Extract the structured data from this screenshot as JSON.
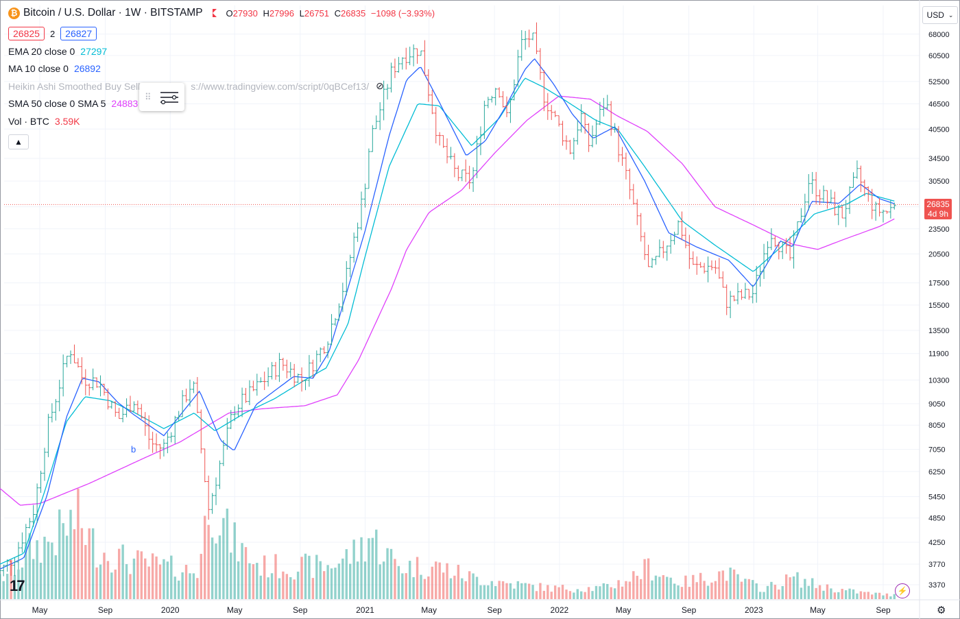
{
  "header": {
    "symbol": "Bitcoin / U.S. Dollar · 1W · BITSTAMP",
    "coin_icon": "bitcoin-icon",
    "open_label": "O",
    "open": "27930",
    "high_label": "H",
    "high": "27996",
    "low_label": "L",
    "low": "26751",
    "close_label": "C",
    "close": "26835",
    "change": "−1098 (−3.93%)",
    "bid": "26825",
    "spread": "2",
    "ask": "26827"
  },
  "indicators": {
    "ema": {
      "label": "EMA 20 close 0",
      "value": "27297"
    },
    "ma": {
      "label": "MA 10 close 0",
      "value": "26892"
    },
    "heikin": {
      "label": "Heikin Ashi Smoothed Buy Sell",
      "url": "s://www.tradingview.com/script/0qBCef13/"
    },
    "sma": {
      "label": "SMA 50 close 0 SMA 5",
      "value": "24883"
    },
    "vol": {
      "label": "Vol · BTC",
      "value": "3.59K"
    }
  },
  "price_axis": {
    "currency": "USD",
    "last_price": "26835",
    "countdown": "4d 9h"
  },
  "signal_label": "b",
  "colors": {
    "up": "#26a69a",
    "down": "#ef5350",
    "ema": "#00bcd4",
    "ma": "#2962ff",
    "sma": "#e040fb"
  },
  "chart_data": {
    "type": "candlestick",
    "timeframe": "1W",
    "yscale": "log",
    "ylim": [
      2850,
      73000
    ],
    "y_ticks": [
      "68000",
      "60500",
      "52500",
      "46500",
      "40500",
      "34500",
      "30500",
      "26500",
      "23500",
      "20500",
      "17500",
      "15500",
      "13500",
      "11900",
      "10300",
      "9050",
      "8050",
      "7050",
      "6250",
      "5450",
      "4850",
      "4250",
      "3770",
      "3370"
    ],
    "x_ticks": [
      "May",
      "Sep",
      "2020",
      "May",
      "Sep",
      "2021",
      "May",
      "Sep",
      "2022",
      "May",
      "Sep",
      "2023",
      "May",
      "Sep"
    ],
    "x_tick_dates": [
      "2019-05-01",
      "2019-09-01",
      "2020-01-01",
      "2020-05-01",
      "2020-09-01",
      "2021-01-01",
      "2021-05-01",
      "2021-09-01",
      "2022-01-01",
      "2022-05-01",
      "2022-09-01",
      "2023-01-01",
      "2023-05-01",
      "2023-09-01"
    ],
    "price_knots": [
      [
        "2019-02-01",
        3450
      ],
      [
        "2019-03-15",
        3950
      ],
      [
        "2019-04-20",
        5100
      ],
      [
        "2019-05-15",
        7900
      ],
      [
        "2019-06-26",
        12300
      ],
      [
        "2019-07-20",
        10400
      ],
      [
        "2019-08-20",
        10200
      ],
      [
        "2019-09-25",
        8300
      ],
      [
        "2019-10-26",
        9300
      ],
      [
        "2019-11-25",
        7300
      ],
      [
        "2019-12-18",
        7100
      ],
      [
        "2020-02-12",
        10300
      ],
      [
        "2020-03-13",
        5100
      ],
      [
        "2020-04-29",
        8800
      ],
      [
        "2020-06-01",
        9600
      ],
      [
        "2020-07-27",
        11300
      ],
      [
        "2020-09-05",
        10300
      ],
      [
        "2020-10-21",
        12800
      ],
      [
        "2020-11-25",
        17800
      ],
      [
        "2020-12-30",
        28900
      ],
      [
        "2021-01-10",
        38000
      ],
      [
        "2021-02-21",
        56000
      ],
      [
        "2021-03-13",
        60500
      ],
      [
        "2021-04-14",
        63000
      ],
      [
        "2021-05-19",
        38000
      ],
      [
        "2021-06-22",
        31500
      ],
      [
        "2021-07-20",
        30500
      ],
      [
        "2021-08-14",
        47000
      ],
      [
        "2021-09-07",
        52000
      ],
      [
        "2021-09-25",
        42500
      ],
      [
        "2021-10-20",
        64500
      ],
      [
        "2021-11-10",
        67500
      ],
      [
        "2021-12-04",
        48000
      ],
      [
        "2022-01-22",
        36000
      ],
      [
        "2022-02-10",
        44000
      ],
      [
        "2022-02-24",
        37000
      ],
      [
        "2022-03-28",
        47500
      ],
      [
        "2022-05-10",
        30000
      ],
      [
        "2022-06-18",
        18500
      ],
      [
        "2022-08-14",
        24400
      ],
      [
        "2022-09-07",
        19000
      ],
      [
        "2022-10-20",
        19200
      ],
      [
        "2022-11-09",
        15800
      ],
      [
        "2022-12-31",
        16550
      ],
      [
        "2023-01-31",
        23200
      ],
      [
        "2023-03-10",
        20000
      ],
      [
        "2023-04-14",
        30500
      ],
      [
        "2023-06-15",
        25200
      ],
      [
        "2023-07-14",
        31500
      ],
      [
        "2023-08-17",
        26000
      ],
      [
        "2023-09-10",
        25800
      ],
      [
        "2023-09-24",
        26835
      ]
    ],
    "ema20_knots": [
      [
        "2019-02-01",
        3700
      ],
      [
        "2019-04-01",
        4000
      ],
      [
        "2019-05-10",
        5600
      ],
      [
        "2019-06-20",
        8200
      ],
      [
        "2019-07-25",
        9400
      ],
      [
        "2019-09-10",
        9200
      ],
      [
        "2019-10-20",
        8700
      ],
      [
        "2019-12-20",
        7900
      ],
      [
        "2020-02-15",
        8600
      ],
      [
        "2020-03-25",
        7800
      ],
      [
        "2020-05-20",
        8600
      ],
      [
        "2020-07-15",
        9300
      ],
      [
        "2020-09-10",
        10300
      ],
      [
        "2020-10-20",
        11000
      ],
      [
        "2020-11-30",
        14000
      ],
      [
        "2020-12-31",
        20000
      ],
      [
        "2021-02-15",
        33000
      ],
      [
        "2021-04-10",
        46500
      ],
      [
        "2021-05-20",
        46000
      ],
      [
        "2021-07-20",
        37000
      ],
      [
        "2021-09-10",
        43000
      ],
      [
        "2021-10-28",
        53500
      ],
      [
        "2021-12-01",
        51000
      ],
      [
        "2022-01-10",
        47500
      ],
      [
        "2022-03-10",
        42500
      ],
      [
        "2022-04-20",
        40500
      ],
      [
        "2022-06-10",
        33000
      ],
      [
        "2022-08-20",
        24500
      ],
      [
        "2022-10-20",
        21500
      ],
      [
        "2022-12-31",
        18600
      ],
      [
        "2023-02-25",
        21500
      ],
      [
        "2023-04-25",
        25500
      ],
      [
        "2023-06-25",
        26900
      ],
      [
        "2023-07-31",
        28500
      ],
      [
        "2023-09-24",
        27297
      ]
    ],
    "ma10_knots": [
      [
        "2019-02-01",
        3600
      ],
      [
        "2019-04-01",
        3900
      ],
      [
        "2019-05-15",
        5500
      ],
      [
        "2019-06-20",
        8400
      ],
      [
        "2019-07-20",
        10400
      ],
      [
        "2019-08-20",
        10200
      ],
      [
        "2019-09-25",
        9100
      ],
      [
        "2019-10-26",
        8500
      ],
      [
        "2019-12-20",
        7600
      ],
      [
        "2020-02-25",
        9700
      ],
      [
        "2020-04-05",
        7400
      ],
      [
        "2020-04-30",
        7000
      ],
      [
        "2020-06-10",
        9000
      ],
      [
        "2020-08-20",
        10500
      ],
      [
        "2020-09-25",
        10400
      ],
      [
        "2020-10-25",
        12000
      ],
      [
        "2020-12-31",
        23000
      ],
      [
        "2021-02-15",
        39000
      ],
      [
        "2021-03-20",
        53000
      ],
      [
        "2021-04-15",
        57000
      ],
      [
        "2021-05-20",
        47000
      ],
      [
        "2021-07-10",
        35000
      ],
      [
        "2021-08-15",
        38000
      ],
      [
        "2021-09-25",
        46500
      ],
      [
        "2021-10-28",
        56000
      ],
      [
        "2021-11-15",
        59500
      ],
      [
        "2021-12-20",
        52000
      ],
      [
        "2022-01-25",
        44000
      ],
      [
        "2022-03-05",
        38500
      ],
      [
        "2022-04-15",
        41000
      ],
      [
        "2022-06-10",
        30500
      ],
      [
        "2022-07-25",
        23000
      ],
      [
        "2022-09-15",
        21300
      ],
      [
        "2022-11-15",
        19800
      ],
      [
        "2022-12-31",
        17100
      ],
      [
        "2023-02-20",
        22000
      ],
      [
        "2023-03-15",
        21300
      ],
      [
        "2023-04-20",
        27300
      ],
      [
        "2023-06-10",
        27000
      ],
      [
        "2023-07-20",
        30000
      ],
      [
        "2023-08-25",
        27700
      ],
      [
        "2023-09-24",
        26892
      ]
    ],
    "sma50_knots": [
      [
        "2019-02-01",
        5900
      ],
      [
        "2019-03-25",
        5200
      ],
      [
        "2019-05-01",
        5250
      ],
      [
        "2019-08-01",
        5850
      ],
      [
        "2019-11-10",
        6700
      ],
      [
        "2020-01-20",
        7350
      ],
      [
        "2020-04-20",
        8600
      ],
      [
        "2020-06-20",
        8800
      ],
      [
        "2020-09-10",
        8950
      ],
      [
        "2020-11-10",
        9500
      ],
      [
        "2020-12-20",
        11500
      ],
      [
        "2021-02-20",
        17000
      ],
      [
        "2021-03-20",
        21000
      ],
      [
        "2021-05-01",
        25700
      ],
      [
        "2021-07-01",
        29000
      ],
      [
        "2021-09-01",
        35500
      ],
      [
        "2021-11-01",
        42500
      ],
      [
        "2021-12-31",
        48500
      ],
      [
        "2022-02-28",
        47700
      ],
      [
        "2022-04-20",
        43500
      ],
      [
        "2022-06-15",
        40000
      ],
      [
        "2022-08-20",
        33500
      ],
      [
        "2022-10-20",
        26500
      ],
      [
        "2022-12-31",
        24000
      ],
      [
        "2023-03-15",
        21600
      ],
      [
        "2023-05-01",
        21000
      ],
      [
        "2023-06-20",
        22200
      ],
      [
        "2023-08-25",
        23800
      ],
      [
        "2023-09-24",
        24883
      ]
    ],
    "volume_knots_btc": [
      [
        "2019-02-01",
        15
      ],
      [
        "2019-04-10",
        45
      ],
      [
        "2019-05-25",
        55
      ],
      [
        "2019-07-10",
        75
      ],
      [
        "2019-08-20",
        45
      ],
      [
        "2019-10-20",
        35
      ],
      [
        "2019-12-20",
        30
      ],
      [
        "2020-02-20",
        25
      ],
      [
        "2020-03-13",
        100
      ],
      [
        "2020-04-25",
        55
      ],
      [
        "2020-06-20",
        30
      ],
      [
        "2020-08-20",
        30
      ],
      [
        "2020-10-20",
        30
      ],
      [
        "2020-12-20",
        45
      ],
      [
        "2021-01-10",
        60
      ],
      [
        "2021-03-10",
        30
      ],
      [
        "2021-05-20",
        30
      ],
      [
        "2021-07-20",
        20
      ],
      [
        "2021-09-20",
        15
      ],
      [
        "2021-12-20",
        10
      ],
      [
        "2022-03-20",
        10
      ],
      [
        "2022-06-18",
        30
      ],
      [
        "2022-08-20",
        15
      ],
      [
        "2022-11-09",
        25
      ],
      [
        "2023-01-20",
        10
      ],
      [
        "2023-03-15",
        20
      ],
      [
        "2023-06-20",
        8
      ],
      [
        "2023-09-24",
        3.59
      ]
    ],
    "volume_max_btc": 120
  }
}
